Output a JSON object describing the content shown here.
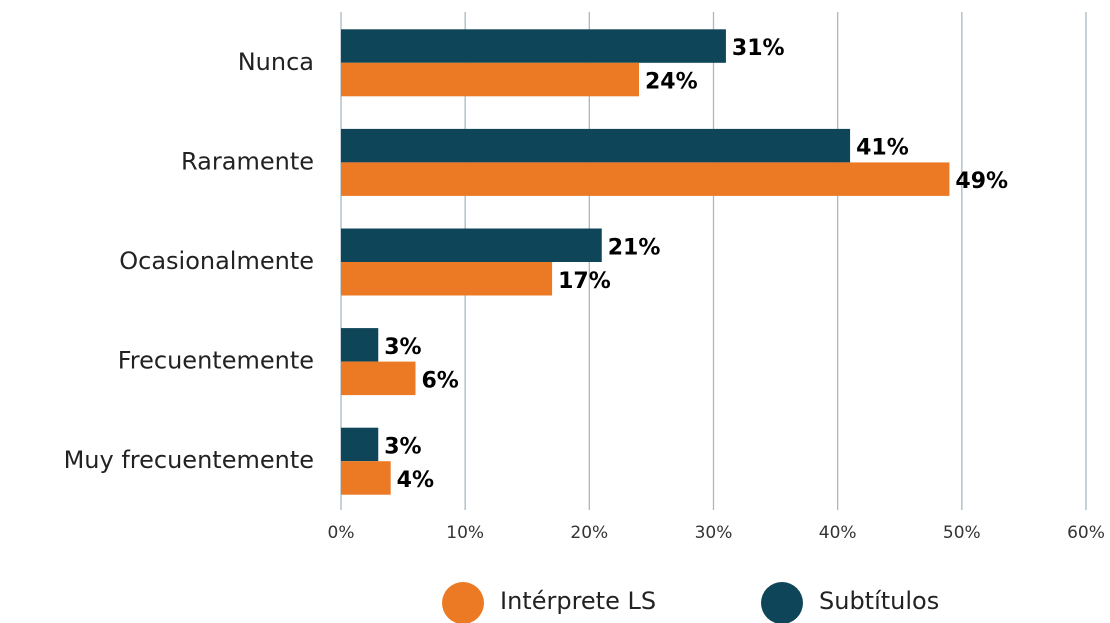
{
  "chart_data": {
    "type": "bar",
    "orientation": "horizontal",
    "categories": [
      "Nunca",
      "Raramente",
      "Ocasionalmente",
      "Frecuentemente",
      "Muy frecuentemente"
    ],
    "series": [
      {
        "name": "Subtítulos",
        "color": "#0f4559",
        "values": [
          31,
          41,
          21,
          3,
          3
        ],
        "value_labels": [
          "31%",
          "41%",
          "21%",
          "3%",
          "3%"
        ]
      },
      {
        "name": "Intérprete LS",
        "color": "#ec7a24",
        "values": [
          24,
          49,
          17,
          6,
          4
        ],
        "value_labels": [
          "24%",
          "49%",
          "17%",
          "6%",
          "4%"
        ]
      }
    ],
    "xlim": [
      0,
      60
    ],
    "xticks": [
      {
        "value": 0,
        "label": "0%"
      },
      {
        "value": 10,
        "label": "10%"
      },
      {
        "value": 20,
        "label": "20%"
      },
      {
        "value": 30,
        "label": "30%"
      },
      {
        "value": 40,
        "label": "40%"
      },
      {
        "value": 50,
        "label": "50%"
      },
      {
        "value": 60,
        "label": "60%"
      }
    ],
    "grid": true,
    "legend": "bottom"
  }
}
